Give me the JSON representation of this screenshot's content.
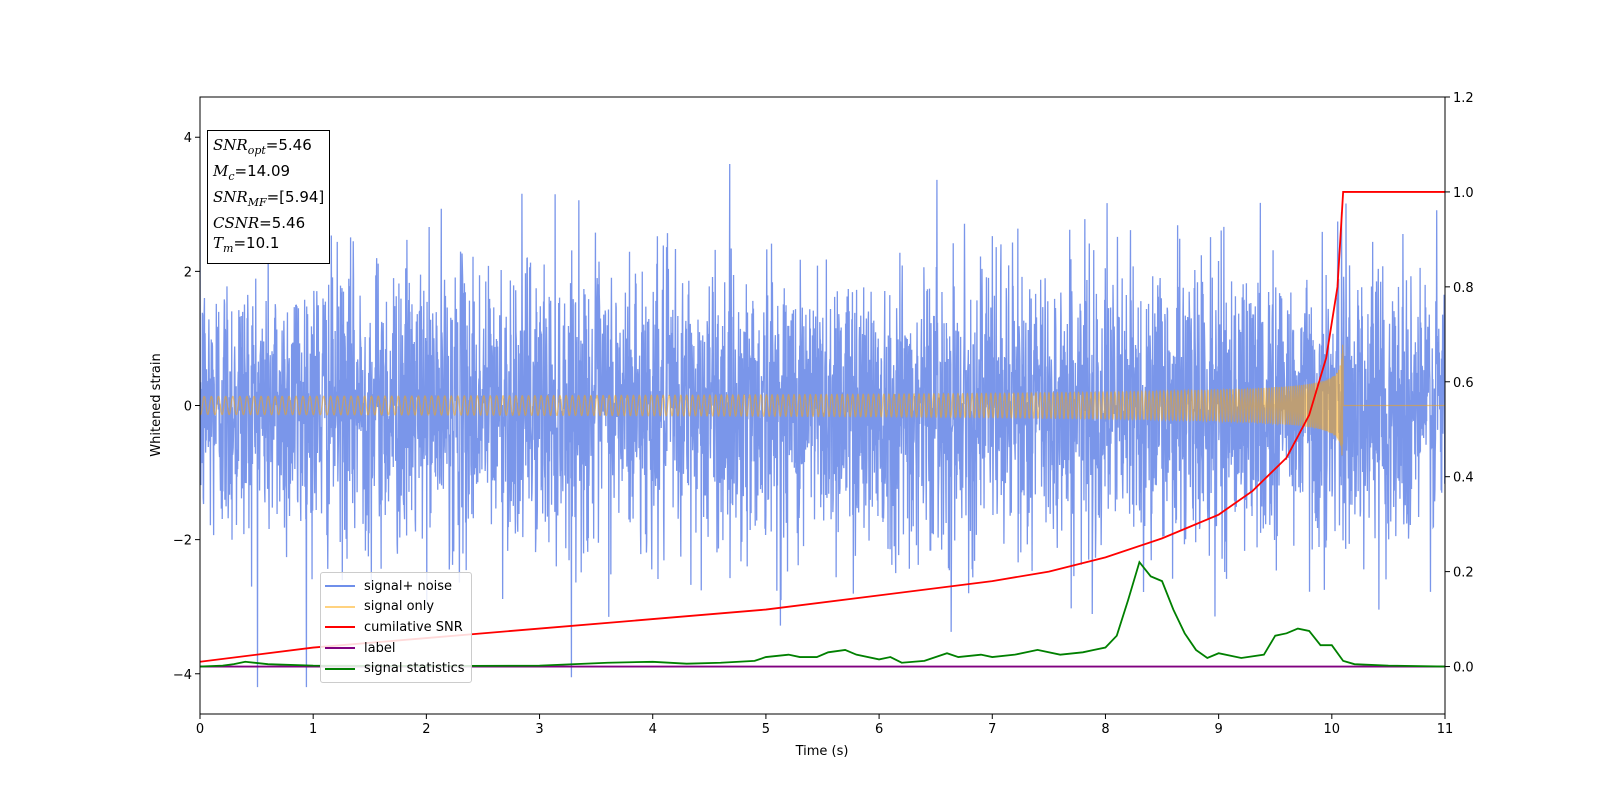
{
  "chart_data": {
    "type": "line",
    "xlabel": "Time (s)",
    "ylabel": "Whitened strain",
    "xlim": [
      0,
      11
    ],
    "ylim_left": [
      -4.6,
      4.6
    ],
    "ylim_right": [
      -0.1,
      1.2
    ],
    "xticks": [
      "0",
      "1",
      "2",
      "3",
      "4",
      "5",
      "6",
      "7",
      "8",
      "9",
      "10",
      "11"
    ],
    "yticks_left": [
      "−4",
      "−2",
      "0",
      "2",
      "4"
    ],
    "yticks_right": [
      "0.0",
      "0.2",
      "0.4",
      "0.6",
      "0.8",
      "1.0",
      "1.2"
    ],
    "grid": false,
    "legend_placement": "lower-left",
    "annotation": {
      "snr_opt": "=5.46",
      "mc": "=14.09",
      "snr_mf": "=[5.94]",
      "csnr": "=5.46",
      "tm": "=10.1"
    },
    "series": [
      {
        "name": "signal+ noise",
        "axis": "left",
        "color": "#4169e1",
        "description": "white noise, roughly ±2.5 with spikes to ±4, spanning 0–11 s"
      },
      {
        "name": "signal only",
        "axis": "left",
        "color": "#ffa500",
        "description": "chirp growing from ~0 to amplitude ~0.95 at 10.1 s, zero afterwards"
      },
      {
        "name": "cumilative SNR",
        "axis": "right",
        "x": [
          0,
          1,
          2,
          3,
          4,
          5,
          6,
          7,
          7.5,
          8,
          8.5,
          9,
          9.3,
          9.6,
          9.8,
          9.95,
          10.05,
          10.1,
          11
        ],
        "y": [
          0.01,
          0.04,
          0.06,
          0.08,
          0.1,
          0.12,
          0.15,
          0.18,
          0.2,
          0.23,
          0.27,
          0.32,
          0.37,
          0.44,
          0.53,
          0.65,
          0.8,
          1.0,
          1.0
        ]
      },
      {
        "name": "label",
        "axis": "right",
        "color": "#800080",
        "x": [
          0,
          11
        ],
        "y": [
          0,
          0
        ]
      },
      {
        "name": "signal statistics",
        "axis": "right",
        "color": "#008000",
        "x": [
          0,
          0.2,
          0.3,
          0.4,
          0.6,
          1.0,
          2.0,
          3.0,
          3.6,
          4.0,
          4.3,
          4.6,
          4.9,
          5.0,
          5.2,
          5.3,
          5.45,
          5.55,
          5.7,
          5.8,
          6.0,
          6.1,
          6.2,
          6.4,
          6.6,
          6.7,
          6.9,
          7.0,
          7.2,
          7.4,
          7.6,
          7.8,
          7.9,
          8.0,
          8.1,
          8.2,
          8.3,
          8.4,
          8.5,
          8.6,
          8.7,
          8.8,
          8.9,
          9.0,
          9.2,
          9.4,
          9.5,
          9.6,
          9.7,
          9.8,
          9.9,
          10.0,
          10.1,
          10.2,
          10.5,
          11.0
        ],
        "y": [
          0,
          0.002,
          0.005,
          0.01,
          0.005,
          0.002,
          0.001,
          0.002,
          0.008,
          0.01,
          0.006,
          0.008,
          0.012,
          0.02,
          0.025,
          0.02,
          0.02,
          0.03,
          0.035,
          0.025,
          0.015,
          0.02,
          0.008,
          0.012,
          0.028,
          0.02,
          0.025,
          0.02,
          0.025,
          0.035,
          0.025,
          0.03,
          0.035,
          0.04,
          0.065,
          0.14,
          0.22,
          0.19,
          0.18,
          0.12,
          0.07,
          0.035,
          0.018,
          0.028,
          0.018,
          0.025,
          0.065,
          0.07,
          0.08,
          0.075,
          0.045,
          0.045,
          0.012,
          0.005,
          0.002,
          0.0
        ]
      }
    ]
  }
}
